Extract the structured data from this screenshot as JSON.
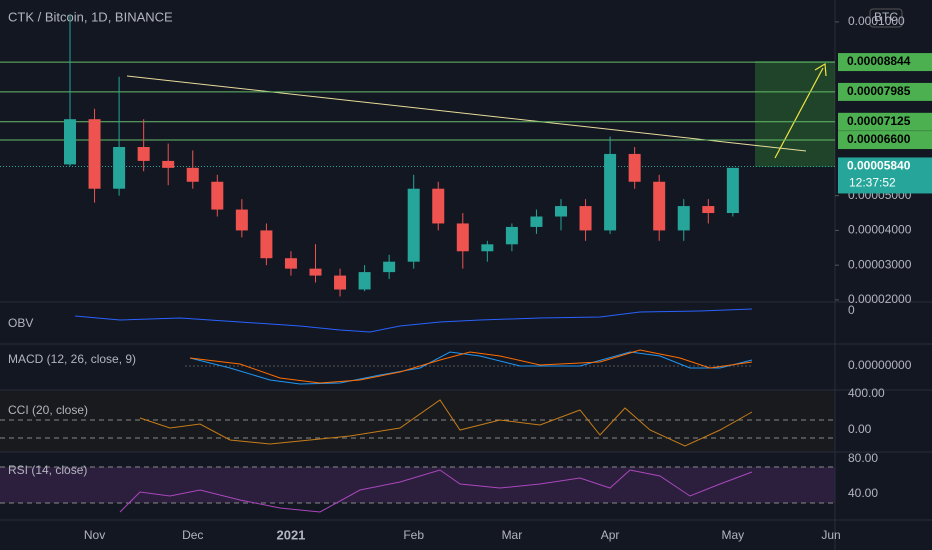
{
  "chart_data": {
    "type": "candlestick",
    "title": "CTK / Bitcoin, 1D, BINANCE",
    "currency": "BTC",
    "countdown": "12:37:52",
    "categories": [
      null,
      "Nov",
      null,
      null,
      null,
      "Dec",
      null,
      null,
      null,
      "2021",
      null,
      null,
      null,
      null,
      "Feb",
      null,
      null,
      null,
      "Mar",
      null,
      null,
      null,
      "Apr",
      null,
      null,
      null,
      null,
      "May",
      null,
      null,
      null,
      "Jun"
    ],
    "open": [
      5.9e-05,
      7.2e-05,
      5.2e-05,
      6.4e-05,
      6e-05,
      5.8e-05,
      5.4e-05,
      4.6e-05,
      4e-05,
      3.2e-05,
      2.9e-05,
      2.7e-05,
      2.3e-05,
      2.8e-05,
      3.1e-05,
      5.2e-05,
      4.2e-05,
      3.4e-05,
      3.6e-05,
      4.1e-05,
      4.4e-05,
      4.7e-05,
      4e-05,
      6.2e-05,
      5.4e-05,
      4e-05,
      4.7e-05,
      4.5e-05,
      null,
      null,
      null,
      null
    ],
    "high": [
      0.000102,
      7.5e-05,
      8.42e-05,
      7.2e-05,
      6.5e-05,
      6.3e-05,
      5.6e-05,
      4.9e-05,
      4.2e-05,
      3.4e-05,
      3.6e-05,
      2.9e-05,
      3e-05,
      3.3e-05,
      5.6e-05,
      5.4e-05,
      4.5e-05,
      3.7e-05,
      4.2e-05,
      4.6e-05,
      4.9e-05,
      4.9e-05,
      6.7e-05,
      6.4e-05,
      5.6e-05,
      4.9e-05,
      4.9e-05,
      5.8e-05,
      null,
      null,
      null,
      null
    ],
    "low": [
      5.85e-05,
      4.8e-05,
      5e-05,
      5.7e-05,
      5.3e-05,
      5.2e-05,
      4.4e-05,
      3.8e-05,
      3e-05,
      2.7e-05,
      2.5e-05,
      2.1e-05,
      2.25e-05,
      2.6e-05,
      2.9e-05,
      4e-05,
      2.9e-05,
      3.1e-05,
      3.4e-05,
      3.9e-05,
      4e-05,
      3.7e-05,
      3.9e-05,
      5.2e-05,
      3.7e-05,
      3.7e-05,
      4.2e-05,
      4.4e-05,
      null,
      null,
      null,
      null
    ],
    "close": [
      7.2e-05,
      5.2e-05,
      6.4e-05,
      6e-05,
      5.8e-05,
      5.4e-05,
      4.6e-05,
      4e-05,
      3.2e-05,
      2.9e-05,
      2.7e-05,
      2.3e-05,
      2.8e-05,
      3.1e-05,
      5.2e-05,
      4.2e-05,
      3.4e-05,
      3.6e-05,
      4.1e-05,
      4.4e-05,
      4.7e-05,
      4e-05,
      6.2e-05,
      5.4e-05,
      4e-05,
      4.7e-05,
      4.5e-05,
      5.8e-05,
      null,
      null,
      null,
      null
    ],
    "up_color": "#26a69a",
    "down_color": "#ef5350",
    "ylim": [
      1.94e-05,
      0.0001063
    ],
    "yticks": [
      {
        "value": 2e-05,
        "label": "0.00002000"
      },
      {
        "value": 3e-05,
        "label": "0.00003000"
      },
      {
        "value": 4e-05,
        "label": "0.00004000"
      },
      {
        "value": 5e-05,
        "label": "0.00005000"
      },
      {
        "value": 0.0001,
        "label": "0.0001000"
      }
    ],
    "levels": [
      {
        "value": 8.844e-05,
        "label": "0.00008844",
        "color": "#4caf50"
      },
      {
        "value": 7.985e-05,
        "label": "0.00007985",
        "color": "#4caf50"
      },
      {
        "value": 7.125e-05,
        "label": "0.00007125",
        "color": "#4caf50"
      },
      {
        "value": 6.6e-05,
        "label": "0.00006600",
        "color": "#4caf50"
      },
      {
        "value": 5.84e-05,
        "label": "0.00005840",
        "color": "#26a69a"
      }
    ],
    "indicators": [
      {
        "name": "OBV",
        "ticks": [
          "0"
        ]
      },
      {
        "name": "MACD (12, 26, close, 9)",
        "ticks": [
          "0.00000000"
        ]
      },
      {
        "name": "CCI (20, close)",
        "ticks": [
          "400.00",
          "0.00"
        ]
      },
      {
        "name": "RSI (14, close)",
        "ticks": [
          "80.00",
          "40.00"
        ]
      }
    ]
  }
}
